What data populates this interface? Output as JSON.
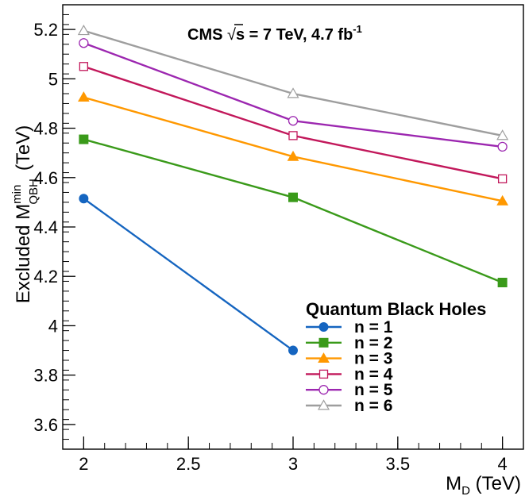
{
  "chart_data": {
    "type": "line",
    "title": "CMS √s = 7 TeV, 4.7 fb⁻¹",
    "title_parts": {
      "prefix": "CMS ",
      "sqrt": "√",
      "s_eq": "s = 7 TeV, 4.7 fb",
      "superscript": "-1"
    },
    "xlabel": {
      "main": "M",
      "sub": "D",
      "unit": " (TeV)"
    },
    "ylabel": {
      "prefix": "Excluded M",
      "sup": "min",
      "sub": "QBH",
      "unit": "(TeV)"
    },
    "xlim": [
      1.9,
      4.1
    ],
    "ylim": [
      3.5,
      5.3
    ],
    "x_ticks": [
      "2",
      "2.5",
      "3",
      "3.5",
      "4"
    ],
    "y_ticks": [
      "3.6",
      "3.8",
      "4",
      "4.2",
      "4.4",
      "4.6",
      "4.8",
      "5",
      "5.2"
    ],
    "legend": {
      "title": "Quantum Black Holes",
      "placement": "bottom-right"
    },
    "series": [
      {
        "name": "n = 1",
        "color": "#1565c0",
        "marker": "circle-filled",
        "x": [
          2,
          3
        ],
        "values": [
          4.515,
          3.9
        ]
      },
      {
        "name": "n = 2",
        "color": "#3a9a1a",
        "marker": "square-filled",
        "x": [
          2,
          3,
          4
        ],
        "values": [
          4.755,
          4.52,
          4.175
        ]
      },
      {
        "name": "n = 3",
        "color": "#ff9800",
        "marker": "triangle-filled",
        "x": [
          2,
          3,
          4
        ],
        "values": [
          4.925,
          4.685,
          4.505
        ]
      },
      {
        "name": "n = 4",
        "color": "#c2185b",
        "marker": "square-open",
        "x": [
          2,
          3,
          4
        ],
        "values": [
          5.05,
          4.77,
          4.595
        ]
      },
      {
        "name": "n = 5",
        "color": "#9c27b0",
        "marker": "circle-open",
        "x": [
          2,
          3,
          4
        ],
        "values": [
          5.145,
          4.83,
          4.725
        ]
      },
      {
        "name": "n = 6",
        "color": "#9e9e9e",
        "marker": "triangle-open",
        "x": [
          2,
          3,
          4
        ],
        "values": [
          5.195,
          4.94,
          4.77
        ]
      }
    ]
  }
}
